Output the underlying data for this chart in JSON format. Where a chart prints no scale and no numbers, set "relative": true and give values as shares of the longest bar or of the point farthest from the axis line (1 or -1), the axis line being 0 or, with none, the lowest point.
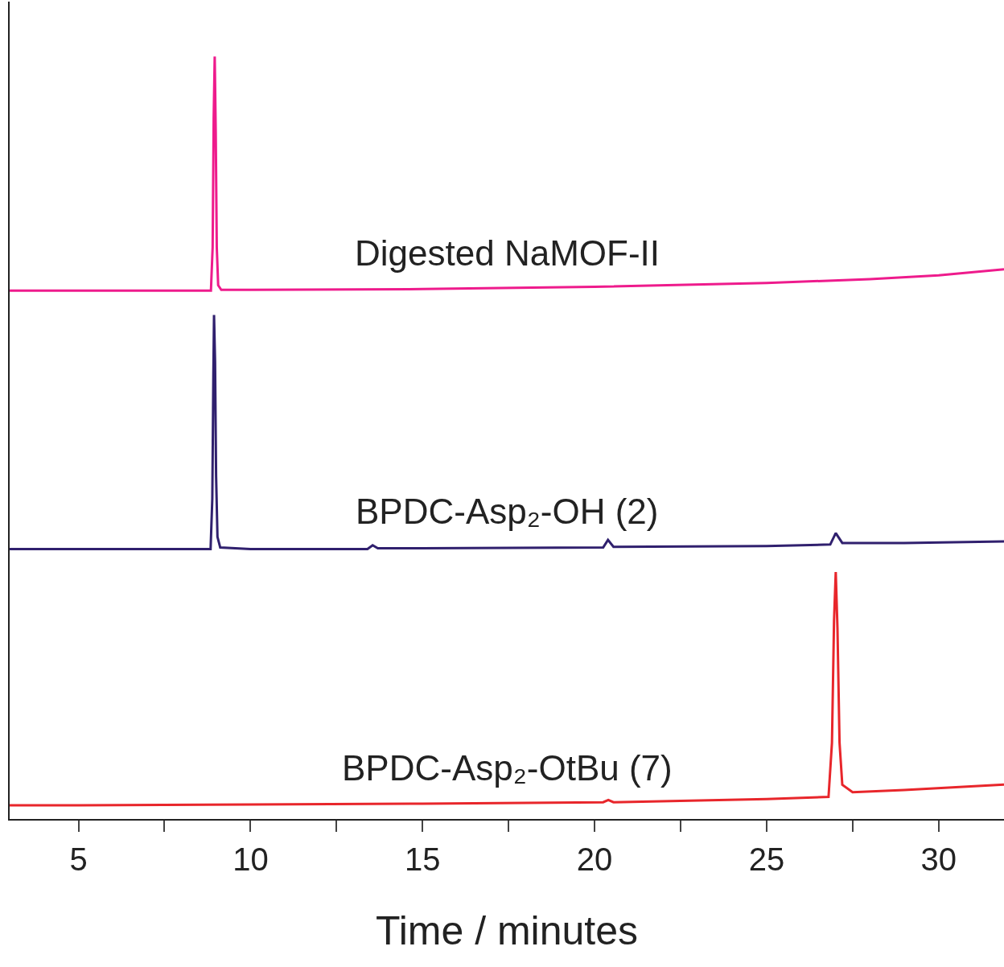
{
  "chart_data": {
    "type": "line",
    "relative": true,
    "xlabel": "Time / minutes",
    "xlim": [
      3,
      31.9
    ],
    "xticks": [
      5,
      {
        "value": 7.5,
        "label": null
      },
      10,
      {
        "value": 12.5,
        "label": null
      },
      15,
      {
        "value": 17.5,
        "label": null
      },
      20,
      {
        "value": 22.5,
        "label": null
      },
      25,
      {
        "value": 27.5,
        "label": null
      },
      30
    ],
    "legend": false,
    "marker": "none",
    "line_style": "solid",
    "tick_labels": "x",
    "series": [
      {
        "name": "Digested NaMOF-II",
        "color": "#ee1b8c",
        "x": [
          3,
          5,
          8,
          8.85,
          8.9,
          8.93,
          8.96,
          8.99,
          9.02,
          9.06,
          9.15,
          10,
          15,
          20,
          25,
          28,
          30,
          31.9
        ],
        "values": [
          0.693,
          0.693,
          0.693,
          0.693,
          0.75,
          0.92,
          1.0,
          0.9,
          0.75,
          0.7,
          0.694,
          0.694,
          0.695,
          0.698,
          0.703,
          0.708,
          0.713,
          0.721
        ]
      },
      {
        "name": "BPDC-Asp₂-OH (2)",
        "color": "#30206e",
        "x": [
          3,
          5,
          8,
          8.84,
          8.89,
          8.92,
          8.94,
          8.97,
          9.0,
          9.04,
          9.12,
          10,
          13.4,
          13.55,
          13.7,
          15,
          20.25,
          20.39,
          20.55,
          25,
          26.85,
          27.01,
          27.2,
          29,
          31.9
        ],
        "values": [
          0.354,
          0.354,
          0.354,
          0.354,
          0.42,
          0.58,
          0.661,
          0.6,
          0.45,
          0.37,
          0.356,
          0.354,
          0.354,
          0.359,
          0.355,
          0.355,
          0.356,
          0.366,
          0.357,
          0.358,
          0.36,
          0.375,
          0.362,
          0.362,
          0.364
        ]
      },
      {
        "name": "BPDC-Asp₂-OtBu (7)",
        "color": "#e8262b",
        "x": [
          3,
          5,
          10,
          15,
          20.25,
          20.4,
          20.55,
          25,
          26.8,
          26.9,
          26.96,
          27.01,
          27.06,
          27.12,
          27.2,
          27.5,
          29,
          31.9
        ],
        "values": [
          0.018,
          0.018,
          0.019,
          0.02,
          0.022,
          0.025,
          0.022,
          0.026,
          0.029,
          0.1,
          0.26,
          0.324,
          0.25,
          0.1,
          0.045,
          0.035,
          0.038,
          0.045
        ]
      }
    ]
  }
}
